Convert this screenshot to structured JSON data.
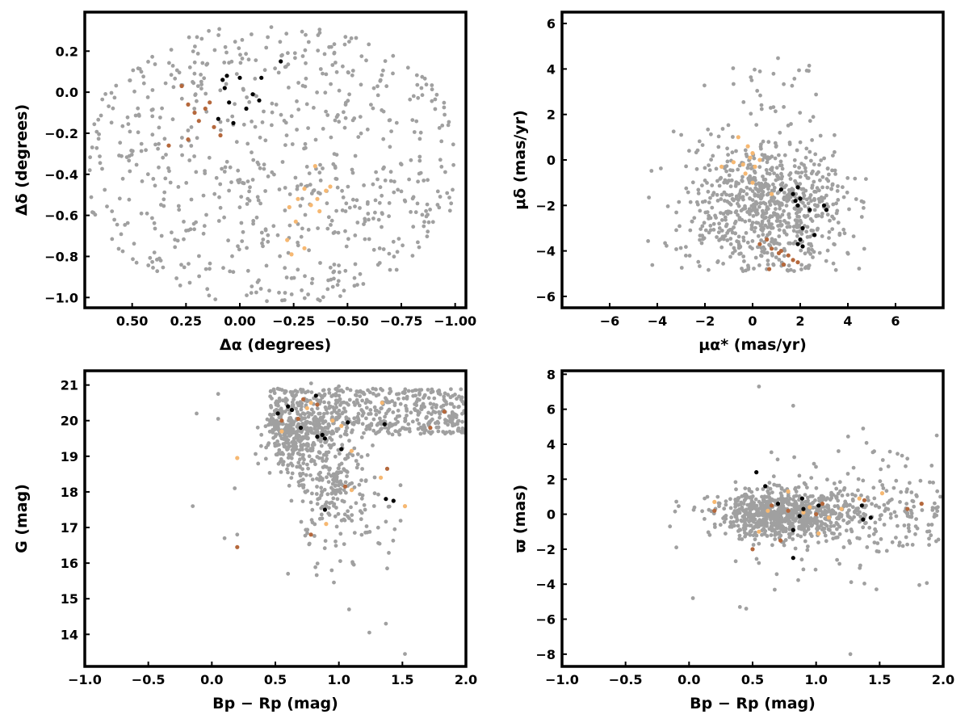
{
  "colors": {
    "field": "#a0a0a0",
    "member_black": "#000000",
    "member_light": "#f6b872",
    "member_dark": "#b5683c"
  },
  "chart_data": [
    {
      "id": "sky",
      "type": "scatter",
      "xlabel": "Δα (degrees)",
      "ylabel": "Δδ (degrees)",
      "xlim": [
        0.72,
        -1.05
      ],
      "ylim": [
        -1.05,
        0.39
      ],
      "xticks": [
        {
          "v": 0.5,
          "t": "0.50"
        },
        {
          "v": 0.25,
          "t": "0.25"
        },
        {
          "v": 0.0,
          "t": "0.00"
        },
        {
          "v": -0.25,
          "t": "−0.25"
        },
        {
          "v": -0.5,
          "t": "−0.50"
        },
        {
          "v": -0.75,
          "t": "−0.75"
        },
        {
          "v": -1.0,
          "t": "−1.00"
        }
      ],
      "yticks": [
        {
          "v": 0.2,
          "t": "0.2"
        },
        {
          "v": 0.0,
          "t": "0.0"
        },
        {
          "v": -0.2,
          "t": "−0.2"
        },
        {
          "v": -0.4,
          "t": "−0.4"
        },
        {
          "v": -0.6,
          "t": "−0.6"
        },
        {
          "v": -0.8,
          "t": "−0.8"
        },
        {
          "v": -1.0,
          "t": "−1.0"
        }
      ],
      "grid": false,
      "series": [
        {
          "color_key": "member_black",
          "points": [
            [
              0.08,
              0.06
            ],
            [
              0.06,
              0.08
            ],
            [
              0.07,
              0.02
            ],
            [
              0.05,
              -0.05
            ],
            [
              0.0,
              0.07
            ],
            [
              -0.03,
              -0.08
            ],
            [
              -0.06,
              -0.01
            ],
            [
              -0.09,
              -0.04
            ],
            [
              -0.1,
              0.07
            ],
            [
              -0.19,
              0.15
            ],
            [
              0.1,
              -0.13
            ],
            [
              0.03,
              -0.15
            ]
          ]
        },
        {
          "color_key": "member_light",
          "points": [
            [
              -0.23,
              -0.56
            ],
            [
              -0.27,
              -0.52
            ],
            [
              -0.3,
              -0.47
            ],
            [
              -0.26,
              -0.63
            ],
            [
              -0.33,
              -0.55
            ],
            [
              -0.36,
              -0.52
            ],
            [
              -0.4,
              -0.48
            ],
            [
              -0.42,
              -0.46
            ],
            [
              -0.37,
              -0.58
            ],
            [
              -0.22,
              -0.72
            ],
            [
              -0.3,
              -0.76
            ],
            [
              -0.24,
              -0.79
            ],
            [
              -0.35,
              -0.36
            ]
          ]
        },
        {
          "color_key": "member_dark",
          "points": [
            [
              0.27,
              0.03
            ],
            [
              0.24,
              -0.06
            ],
            [
              0.21,
              -0.1
            ],
            [
              0.19,
              -0.14
            ],
            [
              0.16,
              -0.08
            ],
            [
              0.14,
              -0.05
            ],
            [
              0.12,
              -0.17
            ],
            [
              0.24,
              -0.23
            ],
            [
              0.33,
              -0.26
            ],
            [
              0.09,
              -0.21
            ]
          ]
        }
      ]
    },
    {
      "id": "proper_motion",
      "type": "scatter",
      "xlabel": "μα* (mas/yr)",
      "ylabel": "μδ (mas/yr)",
      "xlim": [
        -8.0,
        8.0
      ],
      "ylim": [
        -6.5,
        6.5
      ],
      "xticks": [
        {
          "v": -6,
          "t": "−6"
        },
        {
          "v": -4,
          "t": "−4"
        },
        {
          "v": -2,
          "t": "−2"
        },
        {
          "v": 0,
          "t": "0"
        },
        {
          "v": 2,
          "t": "2"
        },
        {
          "v": 4,
          "t": "4"
        },
        {
          "v": 6,
          "t": "6"
        }
      ],
      "yticks": [
        {
          "v": 6,
          "t": "6"
        },
        {
          "v": 4,
          "t": "4"
        },
        {
          "v": 2,
          "t": "2"
        },
        {
          "v": 0,
          "t": "0"
        },
        {
          "v": -2,
          "t": "−2"
        },
        {
          "v": -4,
          "t": "−4"
        },
        {
          "v": -6,
          "t": "−6"
        }
      ],
      "grid": false,
      "series": [
        {
          "color_key": "member_black",
          "points": [
            [
              1.2,
              -1.3
            ],
            [
              1.7,
              -1.5
            ],
            [
              1.9,
              -1.2
            ],
            [
              1.8,
              -1.8
            ],
            [
              2.0,
              -1.7
            ],
            [
              1.9,
              -2.0
            ],
            [
              2.4,
              -2.2
            ],
            [
              3.0,
              -2.0
            ],
            [
              3.1,
              -2.2
            ],
            [
              2.1,
              -3.0
            ],
            [
              2.0,
              -3.5
            ],
            [
              1.9,
              -3.7
            ],
            [
              2.1,
              -3.8
            ],
            [
              2.6,
              -3.3
            ]
          ]
        },
        {
          "color_key": "member_light",
          "points": [
            [
              -0.6,
              1.0
            ],
            [
              -0.2,
              0.6
            ],
            [
              0.0,
              0.3
            ],
            [
              -0.1,
              0.1
            ],
            [
              -0.8,
              -0.1
            ],
            [
              -0.4,
              -0.2
            ],
            [
              0.1,
              -0.3
            ],
            [
              -0.3,
              -0.6
            ],
            [
              0.0,
              -1.0
            ],
            [
              0.8,
              -1.5
            ],
            [
              -1.3,
              -0.3
            ],
            [
              0.3,
              0.0
            ]
          ]
        },
        {
          "color_key": "member_dark",
          "points": [
            [
              0.3,
              -3.7
            ],
            [
              0.6,
              -3.5
            ],
            [
              0.8,
              -3.9
            ],
            [
              1.2,
              -4.0
            ],
            [
              1.5,
              -4.2
            ],
            [
              1.7,
              -4.4
            ],
            [
              1.3,
              -4.6
            ],
            [
              0.7,
              -4.8
            ],
            [
              1.9,
              -4.5
            ],
            [
              1.1,
              -4.1
            ]
          ]
        }
      ]
    },
    {
      "id": "cmd",
      "type": "scatter",
      "xlabel": "Bp − Rp (mag)",
      "ylabel": "G (mag)",
      "xlim": [
        -1.0,
        2.0
      ],
      "ylim": [
        13.1,
        21.4
      ],
      "y_inverted": false,
      "xticks": [
        {
          "v": -1.0,
          "t": "−1.0"
        },
        {
          "v": -0.5,
          "t": "−0.5"
        },
        {
          "v": 0.0,
          "t": "0.0"
        },
        {
          "v": 0.5,
          "t": "0.5"
        },
        {
          "v": 1.0,
          "t": "1.0"
        },
        {
          "v": 1.5,
          "t": "1.5"
        },
        {
          "v": 2.0,
          "t": "2.0"
        }
      ],
      "yticks": [
        {
          "v": 21,
          "t": "21"
        },
        {
          "v": 20,
          "t": "20"
        },
        {
          "v": 19,
          "t": "19"
        },
        {
          "v": 18,
          "t": "18"
        },
        {
          "v": 17,
          "t": "17"
        },
        {
          "v": 16,
          "t": "16"
        },
        {
          "v": 15,
          "t": "15"
        },
        {
          "v": 14,
          "t": "14"
        }
      ],
      "grid": false,
      "series": [
        {
          "color_key": "member_black",
          "points": [
            [
              0.52,
              20.2
            ],
            [
              0.6,
              20.4
            ],
            [
              0.63,
              20.3
            ],
            [
              0.7,
              19.8
            ],
            [
              0.82,
              20.7
            ],
            [
              0.83,
              19.55
            ],
            [
              0.87,
              19.6
            ],
            [
              0.89,
              19.5
            ],
            [
              1.02,
              19.2
            ],
            [
              1.07,
              19.95
            ],
            [
              1.36,
              19.9
            ],
            [
              0.89,
              17.5
            ],
            [
              1.37,
              17.8
            ],
            [
              1.43,
              17.75
            ]
          ]
        },
        {
          "color_key": "member_light",
          "points": [
            [
              0.55,
              19.7
            ],
            [
              0.75,
              20.35
            ],
            [
              0.78,
              20.5
            ],
            [
              0.95,
              20.0
            ],
            [
              1.1,
              19.15
            ],
            [
              1.34,
              20.5
            ],
            [
              1.52,
              17.6
            ],
            [
              0.9,
              17.1
            ],
            [
              1.1,
              18.05
            ],
            [
              1.33,
              18.4
            ],
            [
              0.2,
              18.95
            ],
            [
              1.02,
              19.85
            ]
          ]
        },
        {
          "color_key": "member_dark",
          "points": [
            [
              0.2,
              16.45
            ],
            [
              0.78,
              16.8
            ],
            [
              0.55,
              20.0
            ],
            [
              0.72,
              20.6
            ],
            [
              1.05,
              18.15
            ],
            [
              1.38,
              18.65
            ],
            [
              1.72,
              19.8
            ],
            [
              1.83,
              20.25
            ],
            [
              0.68,
              20.05
            ],
            [
              0.83,
              20.45
            ]
          ]
        }
      ]
    },
    {
      "id": "parallax",
      "type": "scatter",
      "xlabel": "Bp − Rp (mag)",
      "ylabel": "ϖ (mas)",
      "xlim": [
        -1.0,
        2.0
      ],
      "ylim": [
        -8.7,
        8.2
      ],
      "xticks": [
        {
          "v": -1.0,
          "t": "−1.0"
        },
        {
          "v": -0.5,
          "t": "−0.5"
        },
        {
          "v": 0.0,
          "t": "0.0"
        },
        {
          "v": 0.5,
          "t": "0.5"
        },
        {
          "v": 1.0,
          "t": "1.0"
        },
        {
          "v": 1.5,
          "t": "1.5"
        },
        {
          "v": 2.0,
          "t": "2.0"
        }
      ],
      "yticks": [
        {
          "v": 8,
          "t": "8"
        },
        {
          "v": 6,
          "t": "6"
        },
        {
          "v": 4,
          "t": "4"
        },
        {
          "v": 2,
          "t": "2"
        },
        {
          "v": 0,
          "t": "0"
        },
        {
          "v": -2,
          "t": "−2"
        },
        {
          "v": -4,
          "t": "−4"
        },
        {
          "v": -6,
          "t": "−6"
        },
        {
          "v": -8,
          "t": "−8"
        }
      ],
      "grid": false,
      "series": [
        {
          "color_key": "member_black",
          "points": [
            [
              0.53,
              2.4
            ],
            [
              0.6,
              1.6
            ],
            [
              0.7,
              0.6
            ],
            [
              0.82,
              -0.9
            ],
            [
              0.82,
              -2.5
            ],
            [
              0.87,
              -0.1
            ],
            [
              0.89,
              0.9
            ],
            [
              0.9,
              0.3
            ],
            [
              1.02,
              0.5
            ],
            [
              1.36,
              0.5
            ],
            [
              1.43,
              -0.2
            ],
            [
              1.37,
              -0.3
            ]
          ]
        },
        {
          "color_key": "member_light",
          "points": [
            [
              0.2,
              0.7
            ],
            [
              0.55,
              -1.0
            ],
            [
              0.62,
              0.2
            ],
            [
              0.78,
              1.3
            ],
            [
              0.95,
              0.4
            ],
            [
              1.02,
              -1.1
            ],
            [
              1.1,
              -0.2
            ],
            [
              1.52,
              1.2
            ],
            [
              1.34,
              0.9
            ],
            [
              0.9,
              0.1
            ],
            [
              1.2,
              0.3
            ]
          ]
        },
        {
          "color_key": "member_dark",
          "points": [
            [
              0.2,
              0.2
            ],
            [
              0.5,
              -2.0
            ],
            [
              0.72,
              -1.5
            ],
            [
              0.65,
              0.5
            ],
            [
              1.05,
              0.6
            ],
            [
              1.38,
              0.8
            ],
            [
              1.72,
              0.3
            ],
            [
              1.83,
              0.6
            ],
            [
              1.0,
              0.0
            ],
            [
              0.78,
              0.2
            ]
          ]
        }
      ]
    }
  ]
}
